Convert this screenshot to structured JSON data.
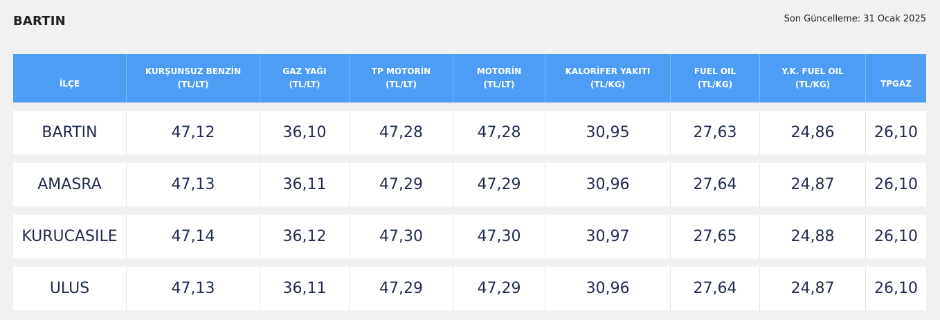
{
  "header": {
    "title": "BARTIN",
    "last_update": "Son Güncelleme: 31 Ocak 2025"
  },
  "table": {
    "columns": [
      {
        "name": "İLÇE",
        "unit": ""
      },
      {
        "name": "KURŞUNSUZ BENZİN",
        "unit": "(TL/LT)"
      },
      {
        "name": "GAZ YAĞI",
        "unit": "(TL/LT)"
      },
      {
        "name": "TP MOTORİN",
        "unit": "(TL/LT)"
      },
      {
        "name": "MOTORİN",
        "unit": "(TL/LT)"
      },
      {
        "name": "KALORİFER YAKITI",
        "unit": "(TL/KG)"
      },
      {
        "name": "FUEL OIL",
        "unit": "(TL/KG)"
      },
      {
        "name": "Y.K. FUEL OIL",
        "unit": "(TL/KG)"
      },
      {
        "name": "TPGAZ",
        "unit": ""
      }
    ],
    "rows": [
      [
        "BARTIN",
        "47,12",
        "36,10",
        "47,28",
        "47,28",
        "30,95",
        "27,63",
        "24,86",
        "26,10"
      ],
      [
        "AMASRA",
        "47,13",
        "36,11",
        "47,29",
        "47,29",
        "30,96",
        "27,64",
        "24,87",
        "26,10"
      ],
      [
        "KURUCASILE",
        "47,14",
        "36,12",
        "47,30",
        "47,30",
        "30,97",
        "27,65",
        "24,88",
        "26,10"
      ],
      [
        "ULUS",
        "47,13",
        "36,11",
        "47,29",
        "47,29",
        "30,96",
        "27,64",
        "24,87",
        "26,10"
      ]
    ]
  }
}
